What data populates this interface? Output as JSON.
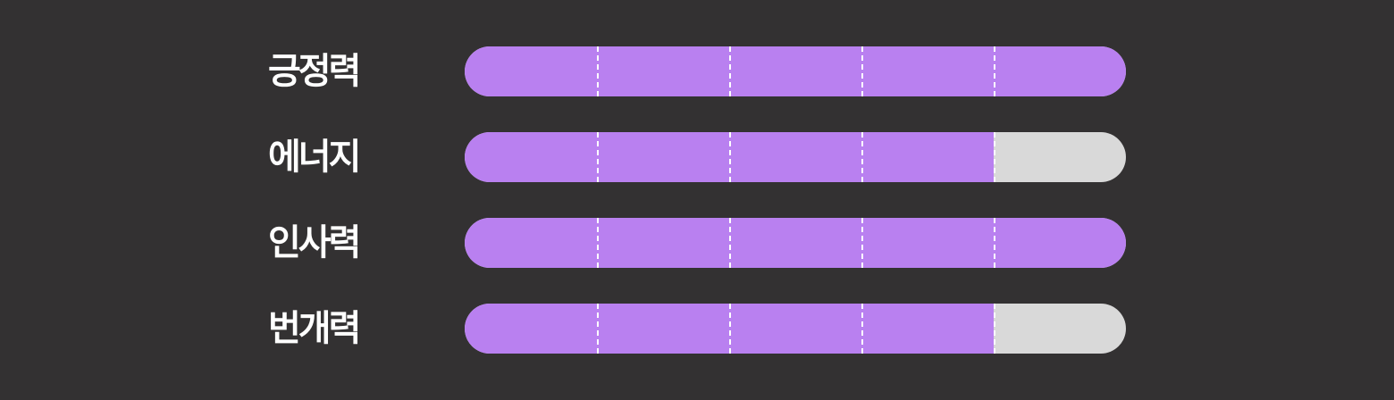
{
  "colors": {
    "background": "#333132",
    "fill": "#b980f0",
    "track": "#d9d9d9",
    "label": "#ffffff",
    "tick": "#ffffff"
  },
  "segments": 5,
  "stats": [
    {
      "label": "긍정력",
      "level": 5,
      "max": 5
    },
    {
      "label": "에너지",
      "level": 4,
      "max": 5
    },
    {
      "label": "인사력",
      "level": 5,
      "max": 5
    },
    {
      "label": "번개력",
      "level": 4,
      "max": 5
    }
  ]
}
